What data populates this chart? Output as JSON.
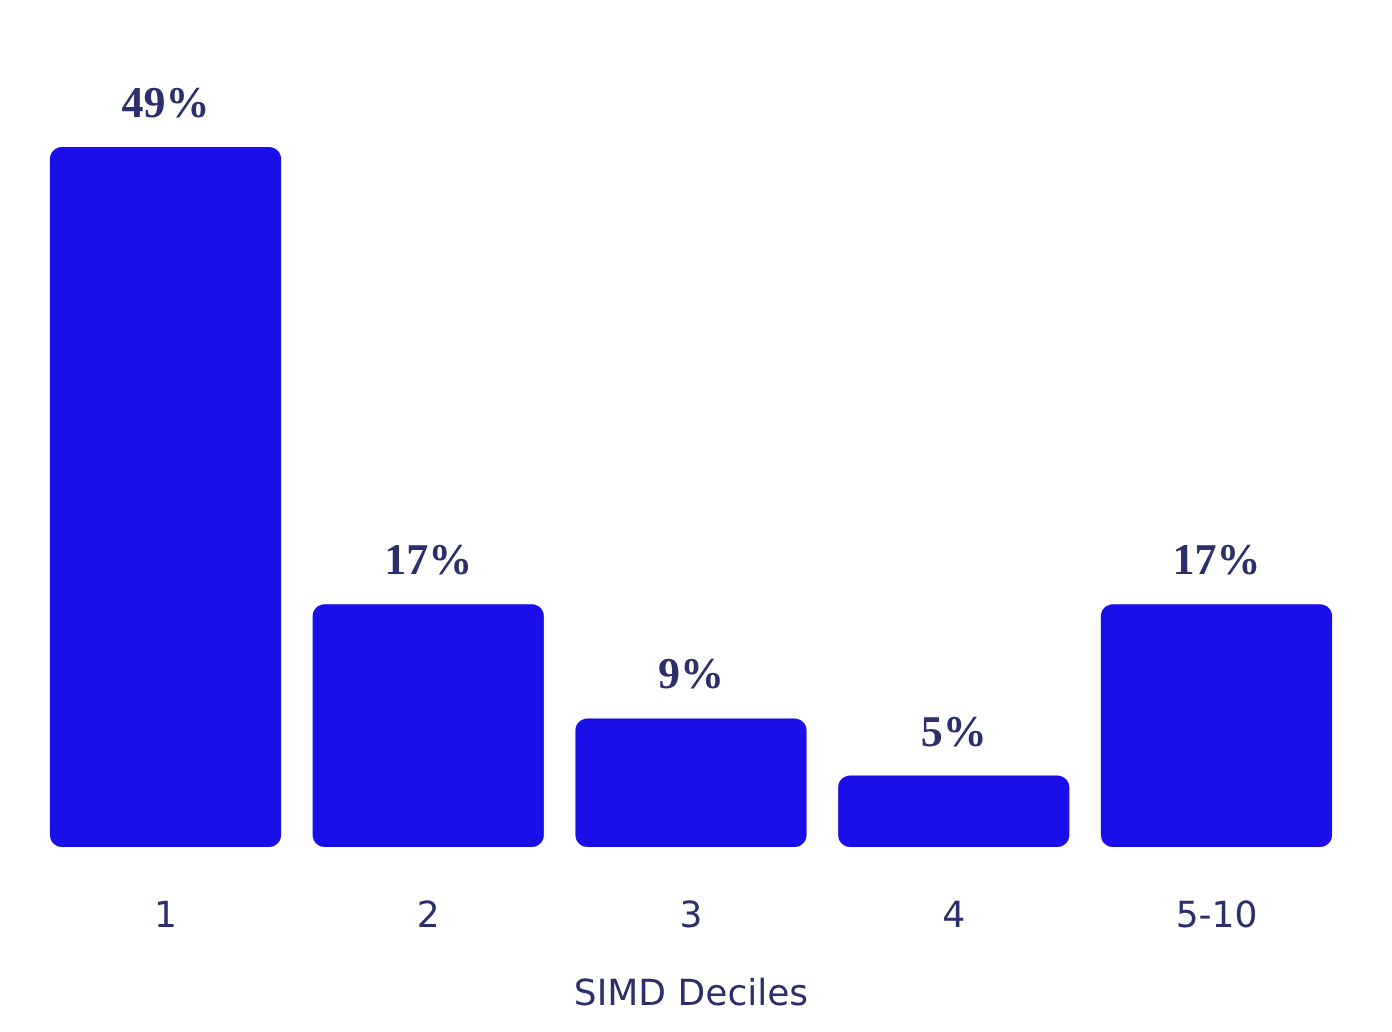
{
  "chart_data": {
    "type": "bar",
    "xlabel": "SIMD Deciles",
    "categories": [
      "1",
      "2",
      "3",
      "4",
      "5-10"
    ],
    "values": [
      49,
      17,
      9,
      5,
      17
    ],
    "value_labels": [
      "49%",
      "17%",
      "9%",
      "5%",
      "17%"
    ],
    "color": "#1a0fe8"
  }
}
